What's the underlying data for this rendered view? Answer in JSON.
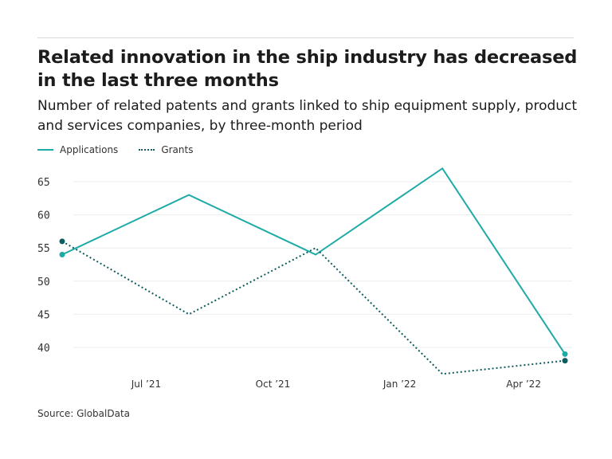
{
  "title": "Related innovation in the ship industry has decreased in the last three months",
  "subtitle": "Number of related patents and grants linked to ship equipment supply, product and services companies, by three-month period",
  "source": "Source: GlobalData",
  "chart_data": {
    "type": "line",
    "title": "Related innovation in the ship industry has decreased in the last three months",
    "subtitle": "Number of related patents and grants linked to ship equipment supply, product and services companies, by three-month period",
    "x": [
      "2021-05-01",
      "2021-08-01",
      "2021-11-01",
      "2022-02-01",
      "2022-05-01"
    ],
    "x_ticks": [
      {
        "date": "2021-07-01",
        "label": "Jul ’21"
      },
      {
        "date": "2021-10-01",
        "label": "Oct ’21"
      },
      {
        "date": "2022-01-01",
        "label": "Jan ’22"
      },
      {
        "date": "2022-04-01",
        "label": "Apr ’22"
      }
    ],
    "y_ticks": [
      40,
      45,
      50,
      55,
      60,
      65
    ],
    "ylim": [
      35,
      67
    ],
    "grid": true,
    "legend": "top-left",
    "series": [
      {
        "name": "Applications",
        "values": [
          54,
          63,
          54,
          67,
          39
        ],
        "color": "#1eaaa7",
        "style": "solid"
      },
      {
        "name": "Grants",
        "values": [
          56,
          45,
          55,
          36,
          38
        ],
        "color": "#0d5c5e",
        "style": "dotted"
      }
    ]
  }
}
